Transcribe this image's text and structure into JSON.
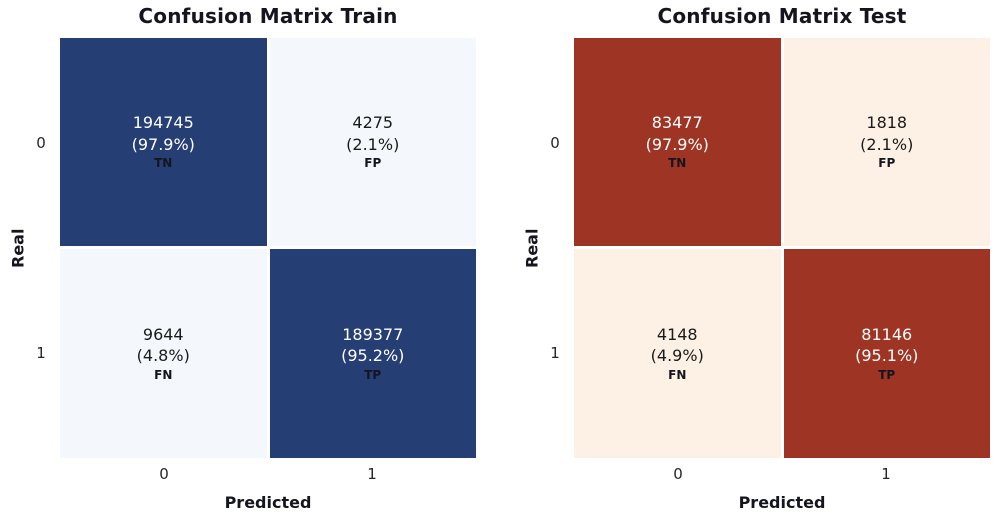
{
  "chart_data": [
    {
      "type": "heatmap",
      "title": "Confusion Matrix Train",
      "xlabel": "Predicted",
      "ylabel": "Real",
      "xticks": [
        "0",
        "1"
      ],
      "yticks": [
        "0",
        "1"
      ],
      "legend": "none",
      "grid": false,
      "colormap": {
        "dark": "#253e74",
        "light": "#f4f8fc"
      },
      "matrix": [
        [
          194745,
          4275
        ],
        [
          9644,
          189377
        ]
      ],
      "percents": [
        [
          97.9,
          2.1
        ],
        [
          4.8,
          95.2
        ]
      ],
      "cells": [
        {
          "count": "194745",
          "pct": "(97.9%)",
          "label": "TN",
          "bg": "#253e74",
          "fg": "#ffffff"
        },
        {
          "count": "4275",
          "pct": "(2.1%)",
          "label": "FP",
          "bg": "#f4f8fc",
          "fg": "#1a1a1a"
        },
        {
          "count": "9644",
          "pct": "(4.8%)",
          "label": "FN",
          "bg": "#f4f8fc",
          "fg": "#1a1a1a"
        },
        {
          "count": "189377",
          "pct": "(95.2%)",
          "label": "TP",
          "bg": "#253e74",
          "fg": "#ffffff"
        }
      ]
    },
    {
      "type": "heatmap",
      "title": "Confusion Matrix Test",
      "xlabel": "Predicted",
      "ylabel": "Real",
      "xticks": [
        "0",
        "1"
      ],
      "yticks": [
        "0",
        "1"
      ],
      "legend": "none",
      "grid": false,
      "colormap": {
        "dark": "#9e3423",
        "light": "#fdf1e5"
      },
      "matrix": [
        [
          83477,
          1818
        ],
        [
          4148,
          81146
        ]
      ],
      "percents": [
        [
          97.9,
          2.1
        ],
        [
          4.9,
          95.1
        ]
      ],
      "cells": [
        {
          "count": "83477",
          "pct": "(97.9%)",
          "label": "TN",
          "bg": "#9e3423",
          "fg": "#ffffff"
        },
        {
          "count": "1818",
          "pct": "(2.1%)",
          "label": "FP",
          "bg": "#fdf1e5",
          "fg": "#1a1a1a"
        },
        {
          "count": "4148",
          "pct": "(4.9%)",
          "label": "FN",
          "bg": "#fdf1e5",
          "fg": "#1a1a1a"
        },
        {
          "count": "81146",
          "pct": "(95.1%)",
          "label": "TP",
          "bg": "#9e3423",
          "fg": "#ffffff"
        }
      ]
    }
  ]
}
